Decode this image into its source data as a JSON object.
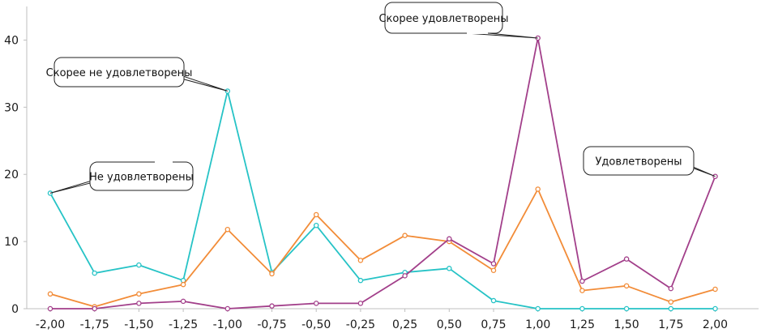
{
  "chart_data": {
    "type": "line",
    "title": "",
    "xlabel": "",
    "ylabel": "",
    "x": [
      -2.0,
      -1.75,
      -1.5,
      -1.25,
      -1.0,
      -0.75,
      -0.5,
      -0.25,
      0.25,
      0.5,
      0.75,
      1.0,
      1.25,
      1.5,
      1.75,
      2.0
    ],
    "x_tick_labels": [
      "-2,00",
      "-1,75",
      "-1,50",
      "-1,25",
      "-1,00",
      "-0,75",
      "-0,50",
      "-0,25",
      "0,25",
      "0,50",
      "0,75",
      "1,00",
      "1,25",
      "1,50",
      "1,75",
      "2,00"
    ],
    "ylim": [
      0,
      45
    ],
    "y_ticks": [
      0,
      10,
      20,
      30,
      40
    ],
    "y_tick_labels": [
      "0",
      "10",
      "20",
      "30",
      "40"
    ],
    "grid": false,
    "legend": "none",
    "series": [
      {
        "color": "#26c3c6",
        "values": [
          17.2,
          5.3,
          6.5,
          4.2,
          32.4,
          5.4,
          12.4,
          4.2,
          5.4,
          6.0,
          1.2,
          0,
          0,
          0,
          0,
          0
        ]
      },
      {
        "color": "#f28c38",
        "values": [
          2.2,
          0.3,
          2.2,
          3.6,
          11.8,
          5.2,
          14.0,
          7.2,
          10.9,
          10.0,
          5.7,
          17.8,
          2.7,
          3.4,
          1.0,
          2.9
        ]
      },
      {
        "color": "#a23f8a",
        "values": [
          0,
          0,
          0.8,
          1.1,
          0,
          0.4,
          0.8,
          0.8,
          4.9,
          10.4,
          6.7,
          40.3,
          4.1,
          7.4,
          3.0,
          19.7
        ]
      }
    ],
    "annotations": [
      {
        "text": "Не удовлетворены",
        "target_x": -2.0,
        "target_y": 17.2
      },
      {
        "text": "Скорее не удовлетворены",
        "target_x": -1.0,
        "target_y": 32.4
      },
      {
        "text": "Скорее удовлетворены",
        "target_x": 1.0,
        "target_y": 40.3
      },
      {
        "text": "Удовлетворены",
        "target_x": 2.0,
        "target_y": 19.7
      }
    ]
  }
}
